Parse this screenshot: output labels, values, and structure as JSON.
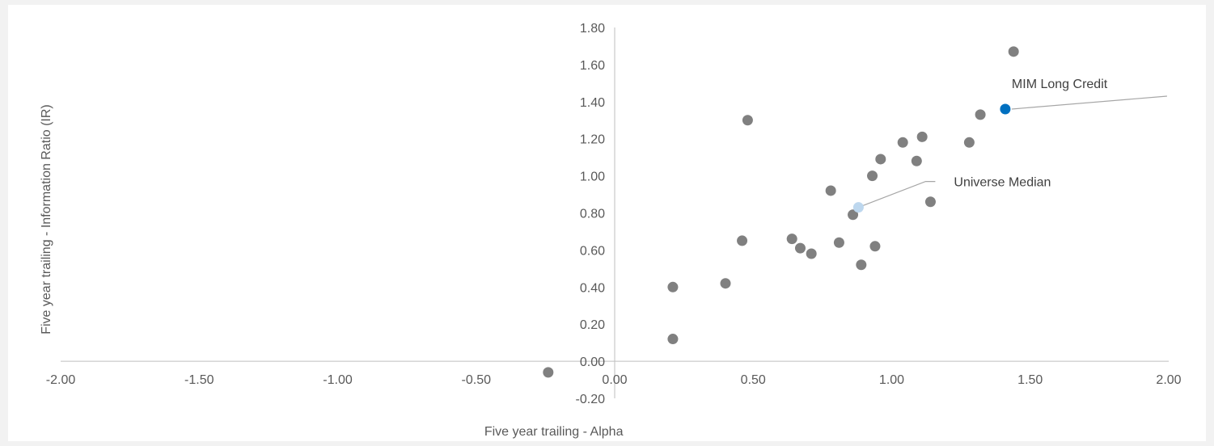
{
  "chart_data": {
    "type": "scatter",
    "xlabel": "Five year trailing - Alpha",
    "ylabel": "Five year trailing - Information Ratio (IR)",
    "xlim": [
      -2.0,
      2.0
    ],
    "ylim": [
      -0.2,
      1.8
    ],
    "x_ticks": [
      "-2.00",
      "-1.50",
      "-1.00",
      "-0.50",
      "0.00",
      "0.50",
      "1.00",
      "1.50",
      "2.00"
    ],
    "y_ticks": [
      "-0.20",
      "0.00",
      "0.20",
      "0.40",
      "0.60",
      "0.80",
      "1.00",
      "1.20",
      "1.40",
      "1.60",
      "1.80"
    ],
    "grid": false,
    "legend": "none",
    "colors": {
      "universe": "#808080",
      "highlight": "#0070c0",
      "median": "#bdd7ee",
      "leader_line": "#a6a6a6"
    },
    "series": [
      {
        "points": [
          {
            "x": -0.24,
            "y": -0.06
          },
          {
            "x": 0.21,
            "y": 0.12
          },
          {
            "x": 0.21,
            "y": 0.4
          },
          {
            "x": 0.4,
            "y": 0.42
          },
          {
            "x": 0.46,
            "y": 0.65
          },
          {
            "x": 0.48,
            "y": 1.3
          },
          {
            "x": 0.64,
            "y": 0.66
          },
          {
            "x": 0.67,
            "y": 0.61
          },
          {
            "x": 0.71,
            "y": 0.58
          },
          {
            "x": 0.78,
            "y": 0.92
          },
          {
            "x": 0.81,
            "y": 0.64
          },
          {
            "x": 0.86,
            "y": 0.79
          },
          {
            "x": 0.89,
            "y": 0.52
          },
          {
            "x": 0.93,
            "y": 1.0
          },
          {
            "x": 0.94,
            "y": 0.62
          },
          {
            "x": 0.96,
            "y": 1.09
          },
          {
            "x": 1.04,
            "y": 1.18
          },
          {
            "x": 1.09,
            "y": 1.08
          },
          {
            "x": 1.11,
            "y": 1.21
          },
          {
            "x": 1.14,
            "y": 0.86
          },
          {
            "x": 1.28,
            "y": 1.18
          },
          {
            "x": 1.32,
            "y": 1.33
          },
          {
            "x": 1.44,
            "y": 1.67
          }
        ]
      },
      {
        "name": "MIM Long Credit",
        "points": [
          {
            "x": 1.41,
            "y": 1.36
          }
        ]
      },
      {
        "name": "Universe Median",
        "points": [
          {
            "x": 0.88,
            "y": 0.83
          }
        ]
      }
    ],
    "annotations": [
      "MIM Long Credit",
      "Universe Median"
    ]
  }
}
